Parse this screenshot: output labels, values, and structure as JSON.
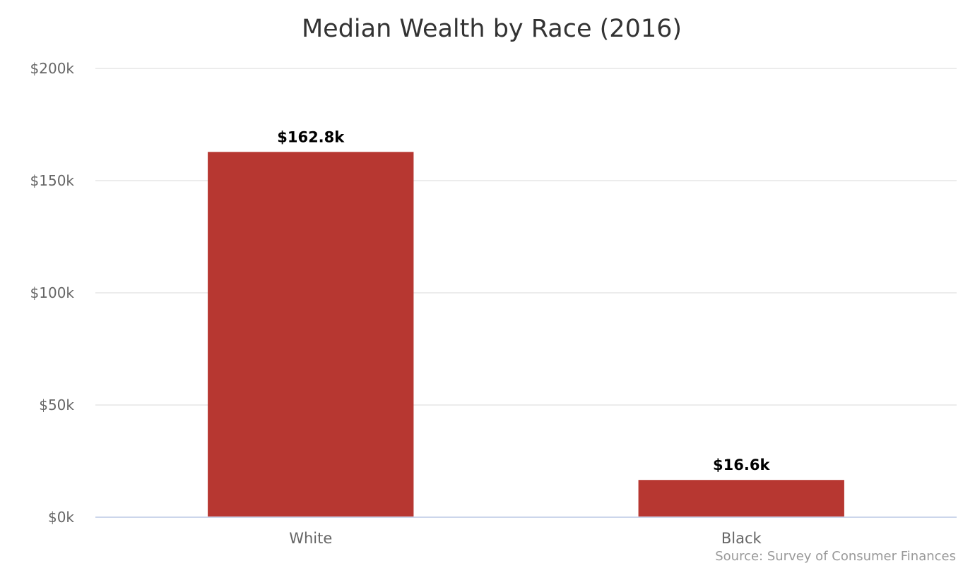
{
  "chart_data": {
    "type": "bar",
    "title": "Median Wealth by Race (2016)",
    "categories": [
      "White",
      "Black"
    ],
    "values": [
      162.8,
      16.6
    ],
    "data_labels": [
      "$162.8k",
      "$16.6k"
    ],
    "ylim": [
      0,
      200
    ],
    "yticks": [
      0,
      50,
      100,
      150,
      200
    ],
    "ytick_labels": [
      "$0k",
      "$50k",
      "$100k",
      "$150k",
      "$200k"
    ],
    "xlabel": "",
    "ylabel": "",
    "grid": true,
    "legend": "none",
    "bar_color": "#b73731",
    "source": "Source: Survey of Consumer Finances"
  }
}
